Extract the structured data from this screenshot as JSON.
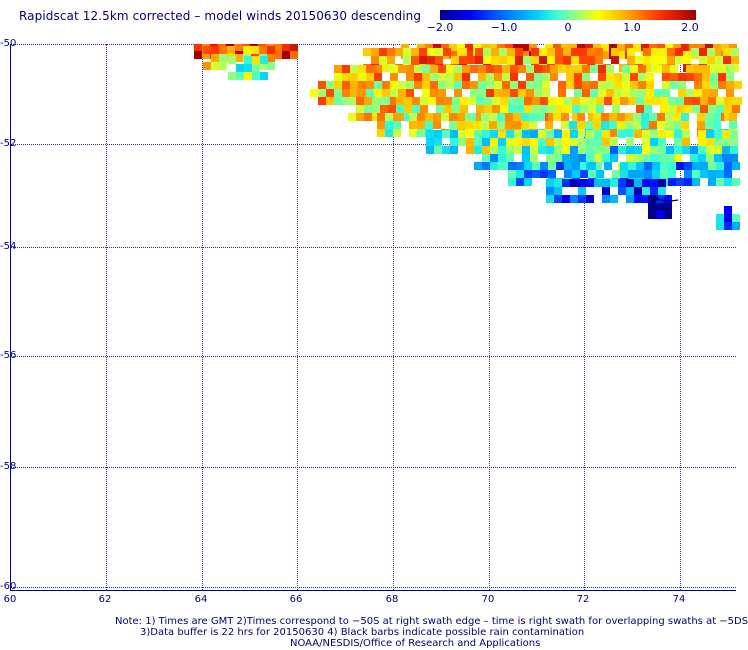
{
  "title": "Rapidscat 12.5km corrected – model winds 20150630 descending",
  "colorbar": {
    "ticks": [
      "−2.0",
      "−1.0",
      "0",
      "1.0",
      "2.0"
    ],
    "range": [
      -2.0,
      2.0
    ]
  },
  "lat_labels": [
    "-50",
    "-52",
    "-54",
    "-56",
    "-58",
    "-60"
  ],
  "lon_labels": [
    "60",
    "62",
    "64",
    "66",
    "68",
    "70",
    "72",
    "74"
  ],
  "notes": [
    "Note: 1) Times are GMT 2)Times correspond to −50S at right swath edge – time is right swath for overlapping swaths at −5DS",
    "3)Data buffer is 22 hrs for 20150630 4) Black barbs indicate possible rain contamination",
    "NOAA/NESDIS/Office of Research and Applications"
  ],
  "map": {
    "lon_range": [
      60,
      75
    ],
    "lat_range": [
      -60,
      -50
    ],
    "colors": {
      "dark_blue": "#00008f",
      "blue": "#0000ff",
      "light_blue": "#0080ff",
      "cyan": "#00e0ff",
      "aqua": "#60ffc0",
      "green": "#a0ff60",
      "yellow": "#ffff00",
      "orange": "#ffa000",
      "red": "#ff3000",
      "dark_red": "#a00000"
    }
  },
  "chart_data": {
    "type": "heatmap",
    "title": "Rapidscat 12.5km corrected – model winds 20150630 descending",
    "xlabel": "",
    "ylabel": "",
    "xlim": [
      60,
      75
    ],
    "ylim": [
      -60,
      -50
    ],
    "value_range": [
      -2.0,
      2.0
    ],
    "swath_rows": [
      {
        "lat": -50.05,
        "lon_start": 63.8,
        "lon_end": 65.9,
        "mean_value": 1.6
      },
      {
        "lat": -50.25,
        "lon_start": 64.0,
        "lon_end": 65.5,
        "mean_value": 0.8
      },
      {
        "lat": -50.45,
        "lon_start": 64.5,
        "lon_end": 65.3,
        "mean_value": 0.2
      },
      {
        "lat": -50.05,
        "lon_start": 68.1,
        "lon_end": 75.0,
        "mean_value": 1.2
      },
      {
        "lat": -50.3,
        "lon_start": 67.3,
        "lon_end": 75.0,
        "mean_value": 1.0
      },
      {
        "lat": -50.6,
        "lon_start": 66.7,
        "lon_end": 75.0,
        "mean_value": 0.8
      },
      {
        "lat": -50.9,
        "lon_start": 66.2,
        "lon_end": 75.0,
        "mean_value": 0.7
      },
      {
        "lat": -51.2,
        "lon_start": 67.0,
        "lon_end": 75.0,
        "mean_value": 0.6
      },
      {
        "lat": -51.5,
        "lon_start": 67.6,
        "lon_end": 75.0,
        "mean_value": 0.4
      },
      {
        "lat": -51.8,
        "lon_start": 68.6,
        "lon_end": 75.0,
        "mean_value": 0.1
      },
      {
        "lat": -52.1,
        "lon_start": 69.6,
        "lon_end": 75.0,
        "mean_value": -0.3
      },
      {
        "lat": -52.4,
        "lon_start": 70.3,
        "lon_end": 75.0,
        "mean_value": -0.7
      },
      {
        "lat": -52.7,
        "lon_start": 71.1,
        "lon_end": 73.6,
        "mean_value": -1.1
      },
      {
        "lat": -53.0,
        "lon_start": 73.2,
        "lon_end": 73.6,
        "mean_value": -1.8
      },
      {
        "lat": -53.2,
        "lon_start": 74.6,
        "lon_end": 75.0,
        "mean_value": -0.8
      }
    ]
  }
}
